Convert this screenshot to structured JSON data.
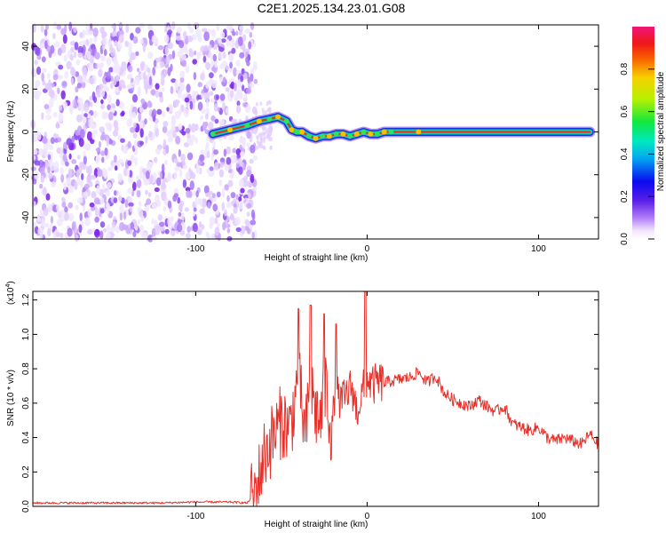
{
  "title": "C2E1.2025.134.23.01.G08",
  "colors": {
    "snr_line": "#e8302a",
    "ridge_core": "#e53020",
    "ridge_mid": "#20d070",
    "ridge_edge": "#1a2fd8",
    "noise": "#7a20e8"
  },
  "chart_data": [
    {
      "type": "heatmap",
      "title": "C2E1.2025.134.23.01.G08",
      "xlabel": "Height of straight line (km)",
      "ylabel": "Frequency (Hz)",
      "xlim": [
        -195,
        135
      ],
      "ylim": [
        -50,
        50
      ],
      "xticks": [
        -100,
        0,
        100
      ],
      "yticks": [
        -40,
        -20,
        0,
        20,
        40
      ],
      "colorbar": {
        "label": "Normalized spectral amplitude",
        "range": [
          0,
          1
        ],
        "ticks": [
          "0.0",
          "0.2",
          "0.4",
          "0.6",
          "0.8"
        ],
        "tick_values": [
          0,
          0.2,
          0.4,
          0.6,
          0.8
        ]
      },
      "noise_region_x": [
        -195,
        -65
      ],
      "ridge": {
        "x": [
          -90,
          -80,
          -70,
          -63,
          -57,
          -52,
          -47,
          -44,
          -41,
          -38,
          -34,
          -30,
          -26,
          -22,
          -18,
          -14,
          -10,
          -6,
          -2,
          2,
          6,
          10,
          14,
          30,
          60,
          90,
          130
        ],
        "freq_hz": [
          -1,
          1,
          3,
          5,
          6,
          7,
          5,
          1,
          0,
          0,
          -2,
          -3,
          -2,
          -2,
          -1,
          -1,
          -2,
          -1,
          0,
          -1,
          -1,
          0,
          0,
          0,
          0,
          0,
          0
        ]
      }
    },
    {
      "type": "line",
      "xlabel": "Height of straight line (km)",
      "ylabel": "SNR (10 * v/v)",
      "multiplier": "(x10",
      "multiplier_exp": "4",
      "multiplier_close": ")",
      "xlim": [
        -195,
        135
      ],
      "ylim": [
        0,
        1.25
      ],
      "xticks": [
        -100,
        0,
        100
      ],
      "yticks": [
        0.0,
        0.2,
        0.4,
        0.6,
        0.8,
        1.0,
        1.2
      ],
      "ytick_labels": [
        "0.0",
        "0.2",
        "0.4",
        "0.6",
        "0.8",
        "1.0",
        "1.2"
      ],
      "series": [
        {
          "x": [
            -195,
            -180,
            -160,
            -140,
            -120,
            -100,
            -80,
            -70,
            -65,
            -60,
            -55,
            -50,
            -45,
            -40,
            -36,
            -33,
            -30,
            -27,
            -24,
            -21,
            -18,
            -15,
            -12,
            -9,
            -6,
            -3,
            0,
            3,
            6,
            10,
            15,
            20,
            25,
            30,
            35,
            40,
            45,
            50,
            55,
            60,
            65,
            70,
            75,
            80,
            85,
            90,
            95,
            100,
            105,
            110,
            115,
            120,
            125,
            130,
            135
          ],
          "y": [
            0.02,
            0.02,
            0.02,
            0.02,
            0.02,
            0.025,
            0.025,
            0.02,
            0.08,
            0.3,
            0.4,
            0.5,
            0.45,
            0.75,
            0.4,
            0.7,
            0.55,
            0.5,
            0.7,
            0.45,
            0.65,
            0.6,
            0.65,
            0.7,
            0.55,
            0.65,
            0.75,
            0.7,
            0.72,
            0.72,
            0.73,
            0.74,
            0.75,
            0.78,
            0.72,
            0.76,
            0.66,
            0.62,
            0.6,
            0.58,
            0.62,
            0.58,
            0.55,
            0.58,
            0.48,
            0.46,
            0.44,
            0.46,
            0.4,
            0.38,
            0.4,
            0.38,
            0.36,
            0.42,
            0.36
          ],
          "spikes": [
            {
              "x": -40,
              "y": 1.15
            },
            {
              "x": -33,
              "y": 1.17
            },
            {
              "x": -25,
              "y": 1.12
            },
            {
              "x": -18,
              "y": 1.06
            },
            {
              "x": -1,
              "y": 1.25
            }
          ]
        }
      ]
    }
  ]
}
